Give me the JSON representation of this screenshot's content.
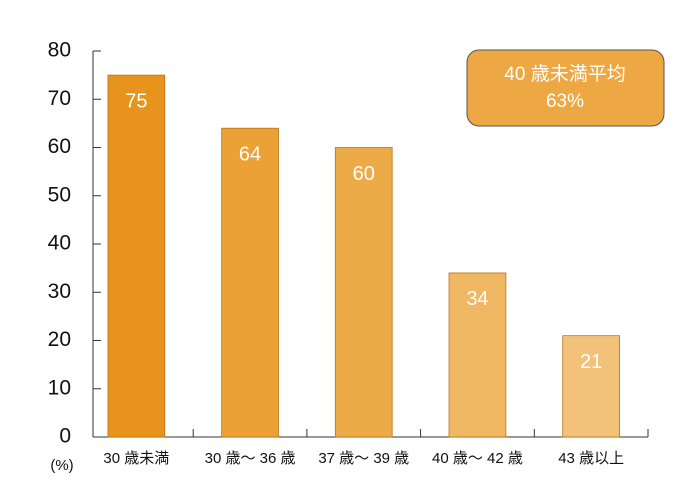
{
  "chart_data": {
    "type": "bar",
    "categories": [
      "30 歳未満",
      "30 歳～ 36 歳",
      "37 歳～ 39 歳",
      "40 歳～ 42 歳",
      "43 歳以上"
    ],
    "values": [
      75,
      64,
      60,
      34,
      21
    ],
    "colors": [
      "#e8941c",
      "#eba133",
      "#edab48",
      "#f0b862",
      "#f2c27a"
    ],
    "ylim": [
      0,
      80
    ],
    "yticks": [
      0,
      10,
      20,
      30,
      40,
      50,
      60,
      70,
      80
    ],
    "unit_label": "(%)",
    "annotation": [
      "40 歳未満平均",
      "63%"
    ]
  }
}
